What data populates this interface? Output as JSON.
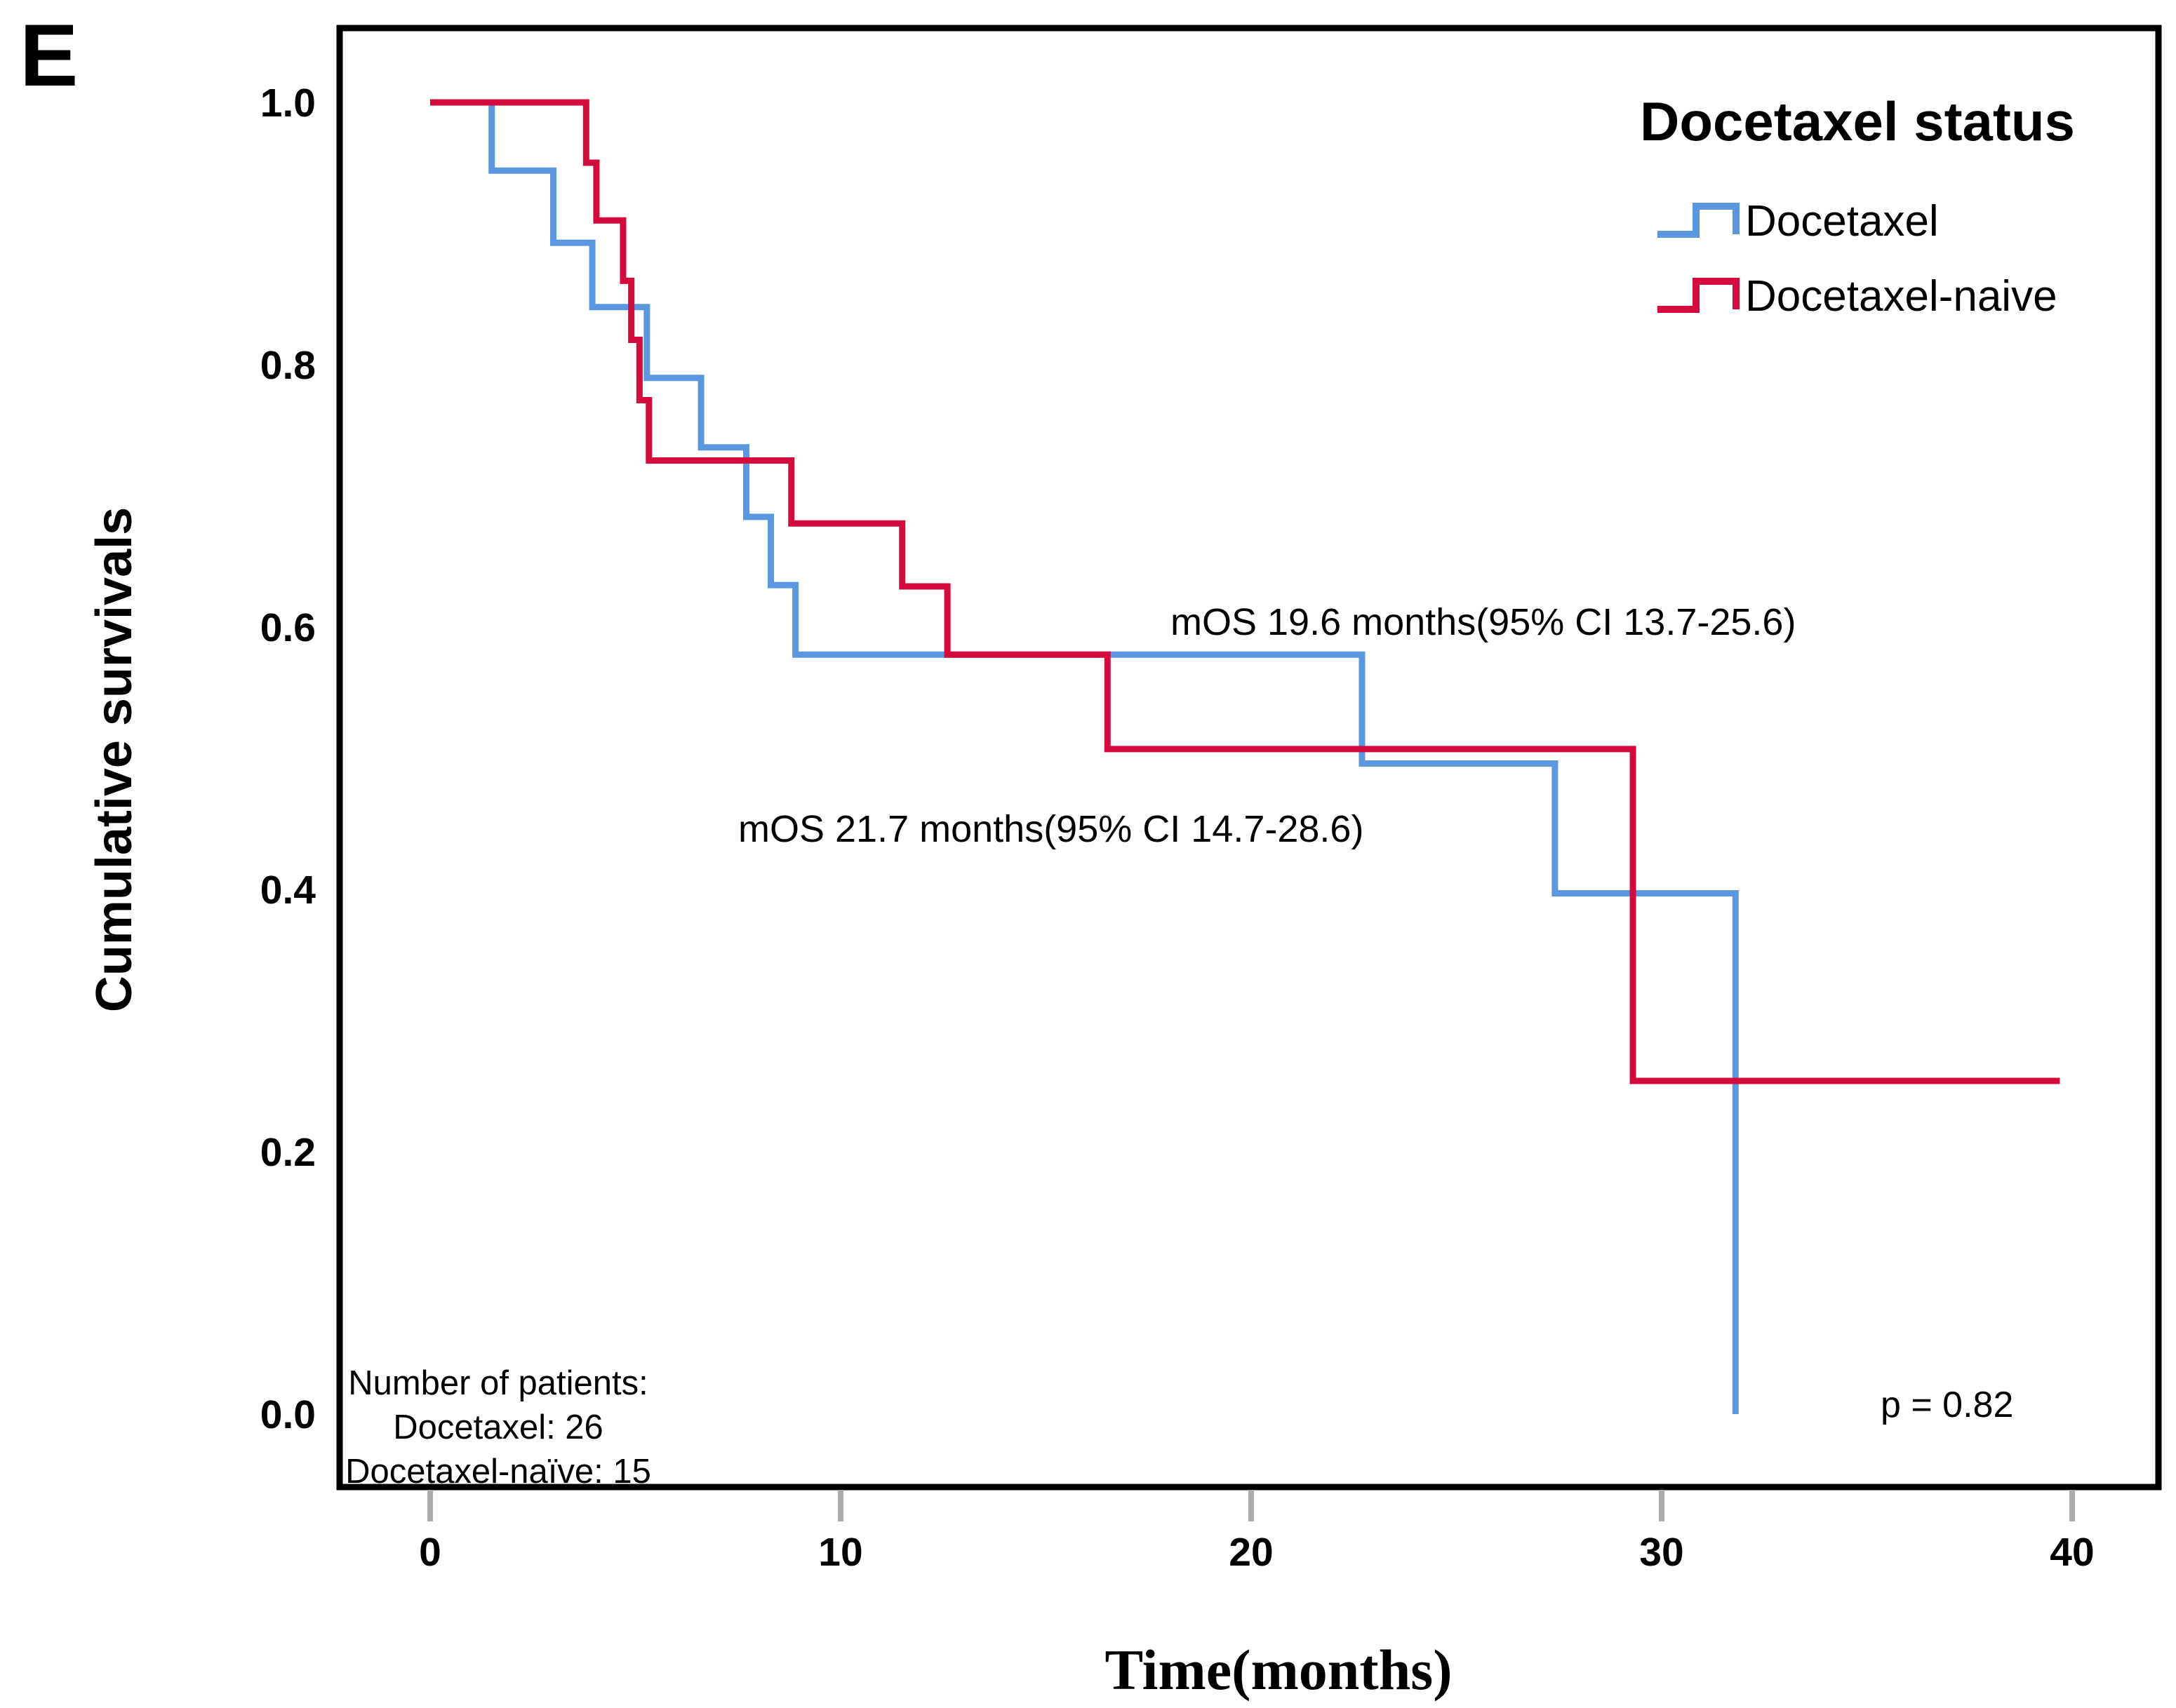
{
  "panel_label": "E",
  "axes": {
    "y_title": "Cumulative survivals",
    "x_title": "Time(months)",
    "y_ticks": [
      "1.0",
      "0.8",
      "0.6",
      "0.4",
      "0.2",
      "0.0"
    ],
    "y_tick_values": [
      1.0,
      0.8,
      0.6,
      0.4,
      0.2,
      0.0
    ],
    "x_ticks": [
      "0",
      "10",
      "20",
      "30",
      "40"
    ],
    "x_tick_values": [
      0,
      10,
      20,
      30,
      40
    ]
  },
  "legend": {
    "title": "Docetaxel status",
    "items": [
      {
        "label": "Docetaxel",
        "color": "#5b96e0"
      },
      {
        "label": "Docetaxel-naive",
        "color": "#d40a3c"
      }
    ]
  },
  "annotations": {
    "mos_upper": "mOS 19.6 months(95% CI 13.7-25.6)",
    "mos_lower": "mOS 21.7 months(95% CI 14.7-28.6)",
    "patients_line1": "Number of patients:",
    "patients_line2": "Docetaxel: 26",
    "patients_line3": "Docetaxel-naïve: 15",
    "p_value": "p = 0.82"
  },
  "chart_data": {
    "type": "line",
    "subtype": "kaplan-meier-step",
    "title": "Docetaxel status",
    "xlabel": "Time(months)",
    "ylabel": "Cumulative survivals",
    "xlim": [
      0,
      40
    ],
    "ylim": [
      0.0,
      1.0
    ],
    "grid": false,
    "legend_position": "top-right",
    "p_value": 0.82,
    "series": [
      {
        "name": "Docetaxel",
        "color": "#5b96e0",
        "n_patients": 26,
        "start": [
          0,
          1.0
        ],
        "steps": [
          [
            1.5,
            0.948
          ],
          [
            3.0,
            0.893
          ],
          [
            3.95,
            0.844
          ],
          [
            5.28,
            0.79
          ],
          [
            6.6,
            0.737
          ],
          [
            7.7,
            0.684
          ],
          [
            8.3,
            0.632
          ],
          [
            8.9,
            0.579
          ],
          [
            22.7,
            0.496
          ],
          [
            27.4,
            0.397
          ],
          [
            31.8,
            0.0
          ]
        ],
        "tail_to": null
      },
      {
        "name": "Docetaxel-naive",
        "color": "#d40a3c",
        "n_patients": 15,
        "start": [
          0,
          1.0
        ],
        "steps": [
          [
            3.8,
            0.954
          ],
          [
            4.05,
            0.91
          ],
          [
            4.7,
            0.864
          ],
          [
            4.9,
            0.819
          ],
          [
            5.1,
            0.773
          ],
          [
            5.33,
            0.727
          ],
          [
            8.8,
            0.679
          ],
          [
            11.5,
            0.631
          ],
          [
            12.6,
            0.579
          ],
          [
            16.5,
            0.507
          ],
          [
            29.3,
            0.254
          ]
        ],
        "tail_to": 39.7
      }
    ]
  }
}
